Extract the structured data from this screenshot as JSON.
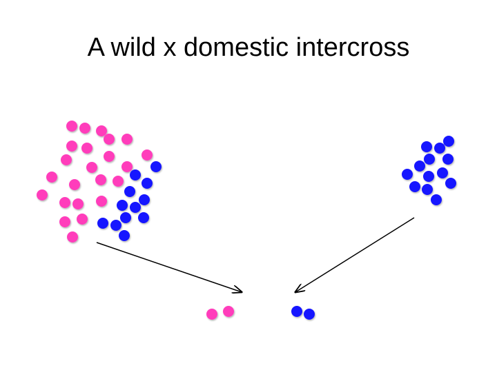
{
  "title": "A wild x domestic intercross",
  "colors": {
    "wild": "#ff3dbb",
    "domestic": "#1414ff",
    "arrow": "#000000"
  },
  "groups": [
    {
      "name": "f1-mixed-population",
      "pink_count": 23,
      "blue_count": 12
    },
    {
      "name": "domestic-population",
      "pink_count": 0,
      "blue_count": 13
    },
    {
      "name": "intercross-offspring",
      "pink_count": 2,
      "blue_count": 2
    }
  ]
}
